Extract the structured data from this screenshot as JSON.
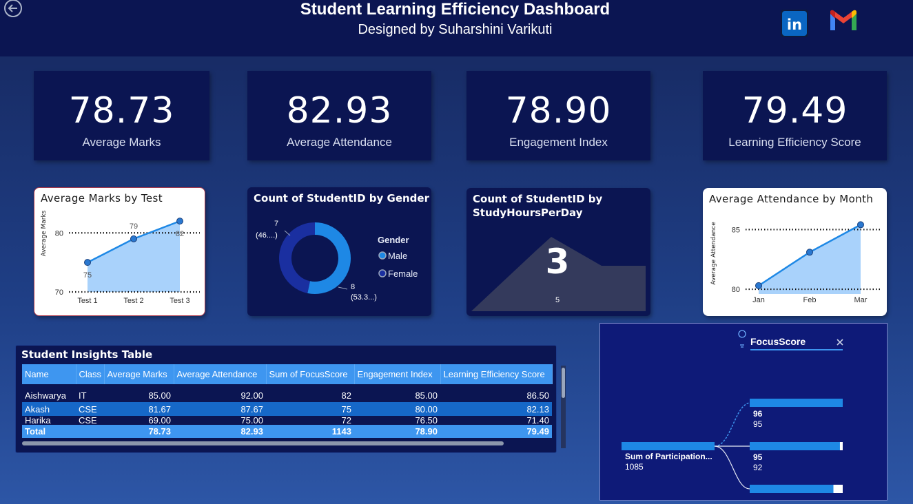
{
  "header": {
    "title": "Student Learning Efficiency Dashboard",
    "subtitle": "Designed by Suharshini Varikuti",
    "linkedin_label": "in"
  },
  "colors": {
    "background": "#1f3f86",
    "card": "#0b1552",
    "accent": "#3e96f0",
    "area_fill": "#a9d2fb",
    "line": "#1e88e5"
  },
  "kpis": [
    {
      "value": "78.73",
      "label": "Average Marks"
    },
    {
      "value": "82.93",
      "label": "Average Attendance"
    },
    {
      "value": "78.90",
      "label": "Engagement Index"
    },
    {
      "value": "79.49",
      "label": "Learning Efficiency Score"
    }
  ],
  "chart_data": [
    {
      "type": "area",
      "title": "Average Marks by Test",
      "ylabel": "Average Marks",
      "categories": [
        "Test 1",
        "Test 2",
        "Test 3"
      ],
      "values": [
        75,
        79,
        82
      ],
      "data_labels": [
        "75",
        "79",
        "82"
      ],
      "yticks": [
        "70",
        "80"
      ],
      "ylim": [
        70,
        84
      ]
    },
    {
      "type": "pie",
      "title": "Count of StudentID by Gender",
      "legend_title": "Gender",
      "legend_position": "right",
      "slices": [
        {
          "label": "Male",
          "value": 8,
          "percent_label": "(53.3...)",
          "color": "#1e88e5"
        },
        {
          "label": "Female",
          "value": 7,
          "percent_label": "(46....)",
          "color": "#1a2fa0"
        }
      ]
    },
    {
      "type": "area",
      "title": "Count of StudentID by StudyHoursPerDay",
      "values": [
        3,
        5
      ],
      "big_label": "3",
      "small_label": "5"
    },
    {
      "type": "area",
      "title": "Average Attendance by Month",
      "ylabel": "Average Attendance",
      "categories": [
        "Jan",
        "Feb",
        "Mar"
      ],
      "values": [
        80.3,
        83.1,
        85.4
      ],
      "yticks": [
        "80",
        "85"
      ],
      "ylim": [
        79.6,
        86
      ]
    }
  ],
  "table": {
    "title": "Student Insights Table",
    "columns": [
      "Name",
      "Class",
      "Average Marks",
      "Average Attendance",
      "Sum of FocusScore",
      "Engagement Index",
      "Learning Efficiency Score"
    ],
    "rows": [
      [
        "Aishwarya",
        "IT",
        "85.00",
        "92.00",
        "82",
        "85.00",
        "86.50"
      ],
      [
        "Akash",
        "CSE",
        "81.67",
        "87.67",
        "75",
        "80.00",
        "82.13"
      ],
      [
        "Harika",
        "CSE",
        "69.00",
        "75.00",
        "72",
        "76.50",
        "71.40"
      ]
    ],
    "total": [
      "Total",
      "",
      "78.73",
      "82.93",
      "1143",
      "78.90",
      "79.49"
    ]
  },
  "decomposition_tree": {
    "field_label": "FocusScore",
    "root": {
      "label": "Sum of Participation...",
      "value": "1085"
    },
    "nodes": [
      {
        "label": "96",
        "value": "95",
        "fill": 1.0
      },
      {
        "label": "95",
        "value": "92",
        "fill": 0.97
      },
      {
        "label": "",
        "value": "",
        "fill": 0.9
      }
    ]
  }
}
